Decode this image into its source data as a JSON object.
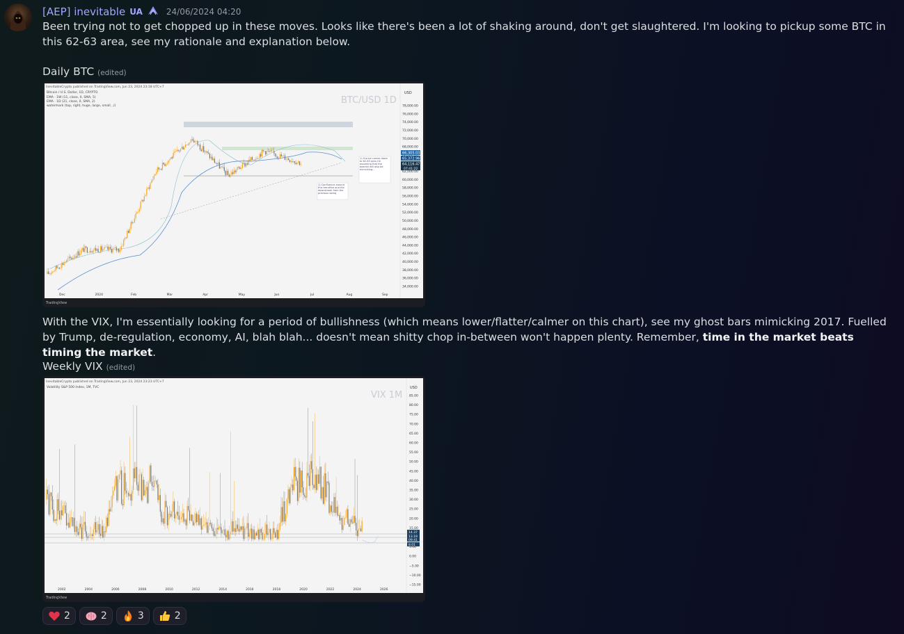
{
  "post": {
    "username": "[AEP] inevitable",
    "badge": "UA",
    "timestamp": "24/06/2024 04:20",
    "message1": "Been trying not to get chopped up in these moves. Looks like there's been a lot of shaking around, don't get slaughtered. I'm looking to pickup some BTC in this 62-63 area, see my rationale and explanation below.",
    "message2_part1": "With the VIX, I'm essentially looking for a period of bullishness (which means lower/flatter/calmer on this chart), see my ghost bars mimicking 2017. Fuelled by Trump, de-regulation, economy, AI, blah blah... doesn't mean shitty chop in-between won't happen plenty. Remember, ",
    "message2_bold": "time in the market beats timing the market",
    "message2_end": "."
  },
  "charts": {
    "btc": {
      "title": "Daily BTC",
      "edited": "(edited)",
      "published": "InevitableCrypto published on TradingView.com, Jun 23, 2024 23:18 UTC+7",
      "legend": [
        "Bitcoin / U.S. Dollar, 1D, CRYPTO",
        "EMA · 1W (11, close, 0, SMA, 5)",
        "EMA · 1D (21, close, 0, SMA, 2)",
        "watermark (top, right, huge, large, small, ,/)"
      ],
      "watermark": "BTC/USD 1D",
      "currency": "USD",
      "price_ticks": [
        "78,000.00",
        "76,000.00",
        "74,000.00",
        "72,000.00",
        "70,000.00",
        "68,000.00",
        "66,000.00",
        "64,000.00",
        "62,000.00",
        "60,000.00",
        "58,000.00",
        "56,000.00",
        "54,000.00",
        "52,000.00",
        "50,000.00",
        "48,000.00",
        "46,000.00",
        "44,000.00",
        "42,000.00",
        "40,000.00",
        "38,000.00",
        "36,000.00",
        "34,000.00"
      ],
      "x_ticks": [
        "Dec",
        "2024",
        "Feb",
        "Mar",
        "Apr",
        "May",
        "Jun",
        "Jul",
        "Aug",
        "Sep"
      ],
      "price_labels": [
        "66,305.03",
        "65,372.96",
        "64,116.47",
        "07:41:22"
      ],
      "annotation1": "1) If price comes down to 62-63 area I'm assuming that the bearish will also be mimicking...",
      "annotation2": "1) Confluence around this trendline and the downstreak from the previous swing",
      "footer": "TradingView",
      "chart_data": {
        "type": "line",
        "x": [
          "Dec",
          "2024",
          "Feb",
          "Mar",
          "Apr",
          "May",
          "Jun",
          "Jul"
        ],
        "values": [
          37000,
          43000,
          43000,
          62000,
          70000,
          61000,
          67000,
          64100
        ],
        "ylim": [
          34000,
          78000
        ]
      }
    },
    "vix": {
      "title": "Weekly VIX",
      "edited": "(edited)",
      "published": "InevitableCrypto published on TradingView.com, Jun 23, 2024 23:23 UTC+7",
      "legend": "Volatility S&P 500 Index, 1M, TVC",
      "watermark": "VIX 1M",
      "currency": "USD",
      "price_ticks": [
        "85.00",
        "80.00",
        "75.00",
        "70.00",
        "65.00",
        "60.00",
        "55.00",
        "50.00",
        "45.00",
        "40.00",
        "35.00",
        "30.00",
        "25.00",
        "20.00",
        "15.00",
        "10.00",
        "5.00",
        "0.00",
        "−5.00",
        "−10.00",
        "−15.00"
      ],
      "x_ticks": [
        "2002",
        "2004",
        "2006",
        "2008",
        "2010",
        "2012",
        "2014",
        "2016",
        "2018",
        "2020",
        "2022",
        "2024",
        "2026"
      ],
      "price_labels": [
        "14.37",
        "13.19",
        "09:41",
        "8.01"
      ],
      "footer": "TradingView",
      "chart_data": {
        "type": "line",
        "x": [
          2002,
          2004,
          2006,
          2008,
          2010,
          2012,
          2014,
          2016,
          2018,
          2020,
          2022,
          2024
        ],
        "values": [
          30,
          16,
          12,
          80,
          25,
          22,
          14,
          15,
          12,
          66,
          25,
          14
        ],
        "ylim": [
          -15,
          85
        ]
      }
    }
  },
  "reactions": [
    {
      "emoji": "heart-emoji",
      "count": "2"
    },
    {
      "emoji": "brain-emoji",
      "count": "2"
    },
    {
      "emoji": "fire-emoji",
      "count": "3"
    },
    {
      "emoji": "thumbs-up-emoji",
      "count": "2"
    }
  ]
}
